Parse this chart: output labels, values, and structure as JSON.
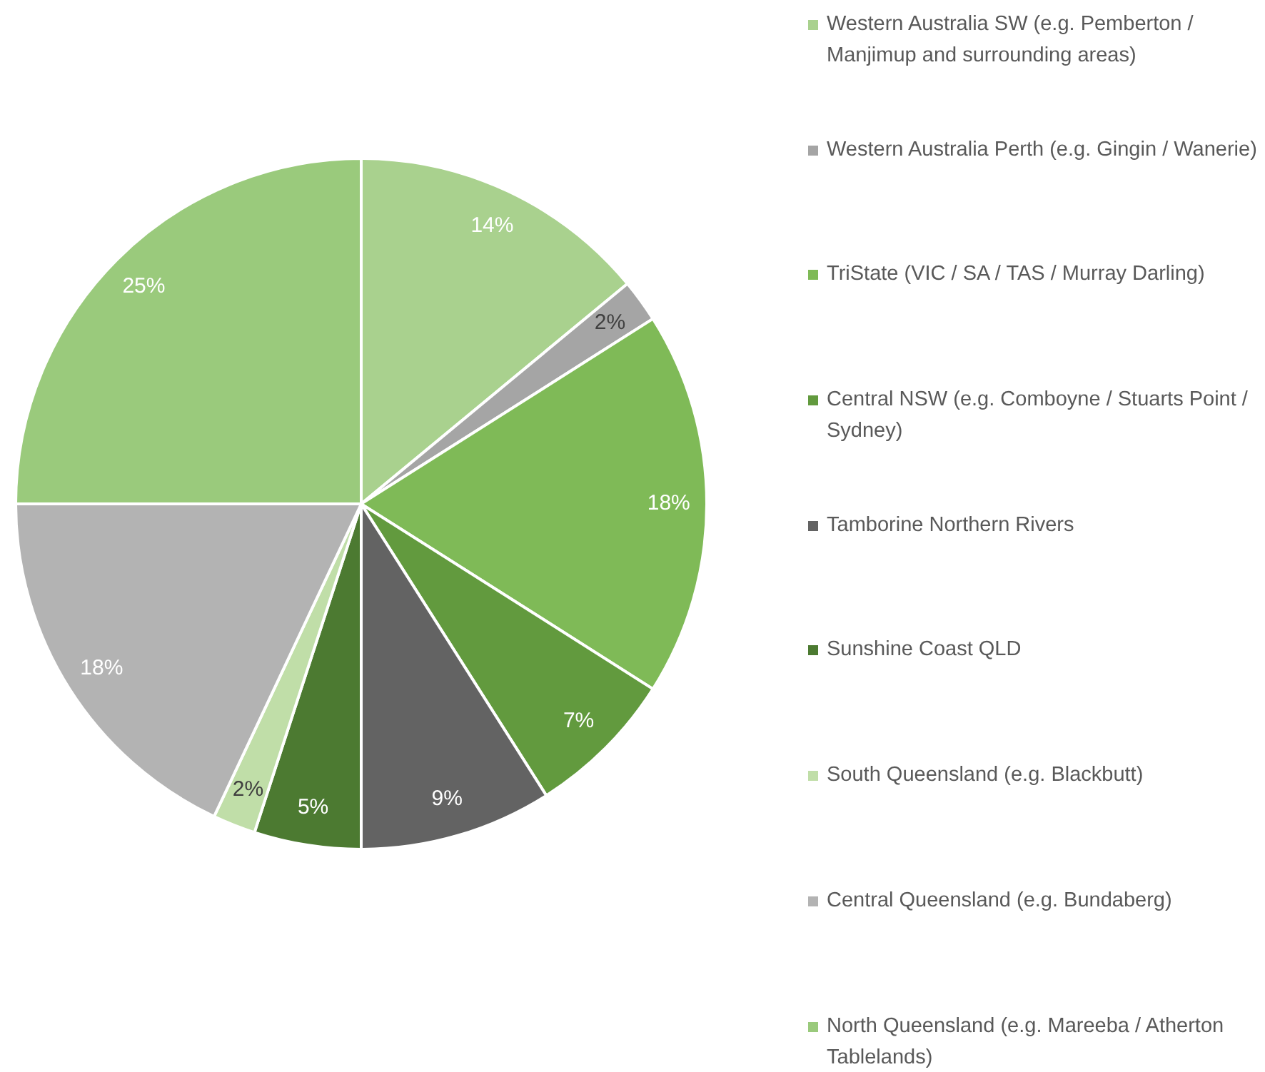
{
  "chart_data": {
    "type": "pie",
    "categories": [
      "Western Australia SW (e.g. Pemberton / Manjimup and surrounding areas)",
      "Western Australia Perth (e.g. Gingin / Wanerie)",
      "TriState (VIC / SA / TAS / Murray Darling)",
      "Central NSW (e.g. Comboyne / Stuarts Point / Sydney)",
      "Tamborine Northern Rivers",
      "Sunshine Coast QLD",
      "South Queensland (e.g. Blackbutt)",
      "Central Queensland (e.g. Bundaberg)",
      "North Queensland (e.g. Mareeba / Atherton Tablelands)"
    ],
    "values": [
      14,
      2,
      18,
      7,
      9,
      5,
      2,
      18,
      25
    ],
    "colors": [
      "#a9d18e",
      "#a5a5a5",
      "#7fba57",
      "#629a3e",
      "#636363",
      "#4c7a31",
      "#c0dea8",
      "#b3b3b3",
      "#9aca7c"
    ],
    "value_labels": [
      "14%",
      "2%",
      "18%",
      "7%",
      "9%",
      "5%",
      "2%",
      "18%",
      "25%"
    ],
    "legend": "right"
  }
}
